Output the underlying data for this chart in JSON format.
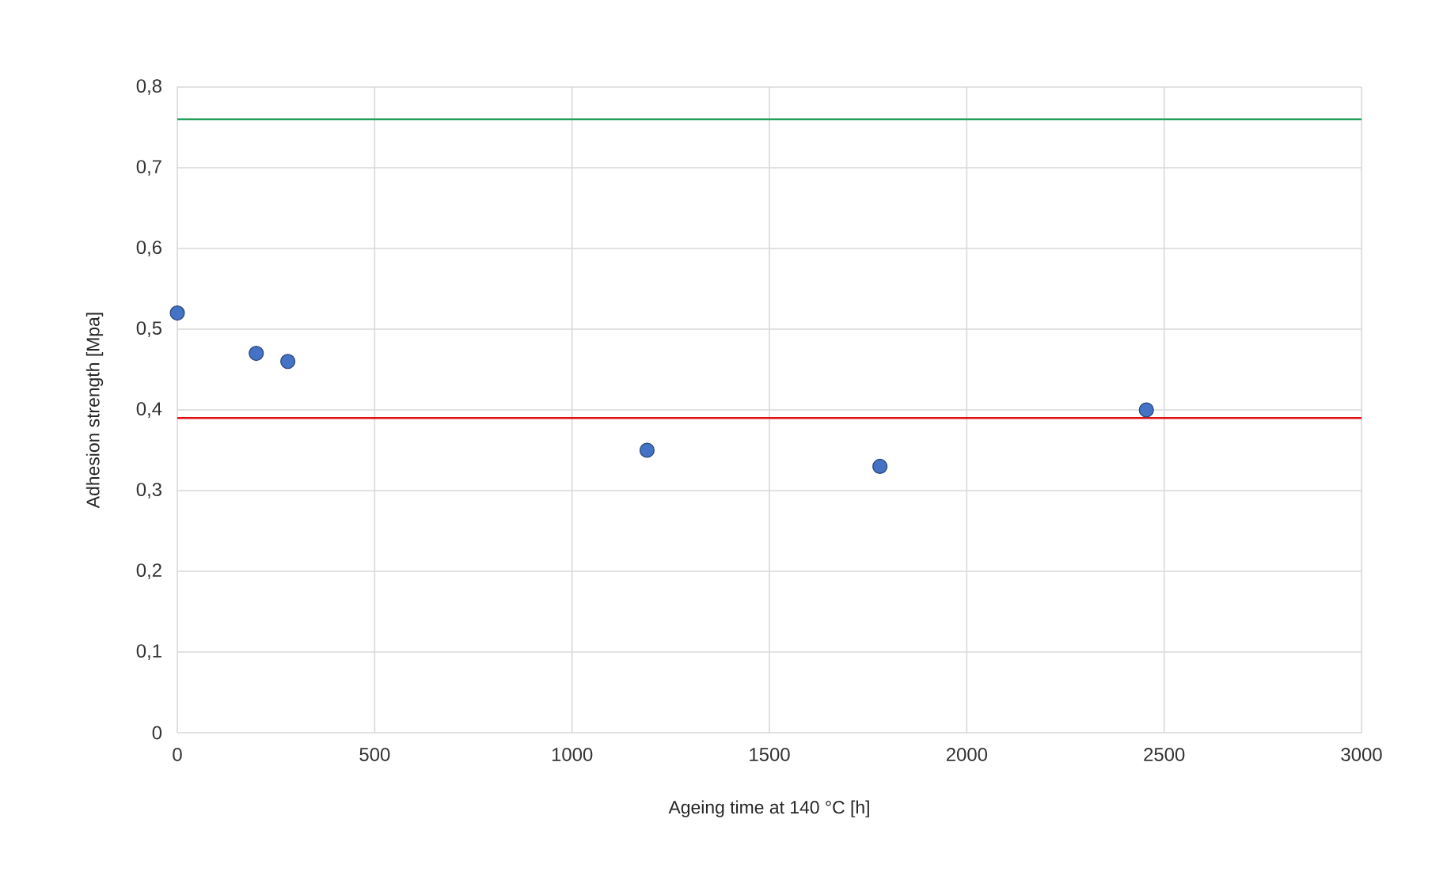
{
  "chart_data": {
    "type": "scatter",
    "xlabel": "Ageing time at 140 °C [h]",
    "ylabel": "Adhesion strength [Mpa]",
    "x": [
      0,
      200,
      280,
      1190,
      1780,
      2455
    ],
    "values": [
      0.52,
      0.47,
      0.46,
      0.35,
      0.33,
      0.4
    ],
    "color": "#4472c4",
    "marker": "circle",
    "xlim": [
      0,
      3000
    ],
    "xticks": [
      0,
      500,
      1000,
      1500,
      2000,
      2500,
      3000
    ],
    "ylim": [
      0,
      0.8
    ],
    "yticks": [
      0,
      {
        "value": 0.1,
        "label": "0,1"
      },
      {
        "value": 0.2,
        "label": "0,2"
      },
      {
        "value": 0.3,
        "label": "0,3"
      },
      {
        "value": 0.4,
        "label": "0,4"
      },
      {
        "value": 0.5,
        "label": "0,5"
      },
      {
        "value": 0.6,
        "label": "0,6"
      },
      {
        "value": 0.7,
        "label": "0,7"
      },
      {
        "value": 0.8,
        "label": "0,8"
      }
    ],
    "grid": true,
    "ref_lines": [
      {
        "axis": "y",
        "value": 0.76,
        "color": "#23a05a"
      },
      {
        "axis": "y",
        "value": 0.39,
        "color": "#e01010"
      }
    ]
  }
}
